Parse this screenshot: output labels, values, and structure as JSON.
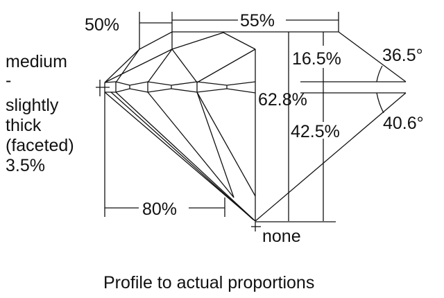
{
  "labels": {
    "table_width": "55%",
    "star_length": "50%",
    "crown_height": "16.5%",
    "crown_angle": "36.5°",
    "total_depth": "62.8%",
    "pavilion_depth": "42.5%",
    "pavilion_angle": "40.6°",
    "lower_half_length": "80%",
    "culet": "none",
    "girdle_lines": [
      "medium",
      "-",
      "slightly",
      "thick",
      "(faceted)",
      "3.5%"
    ]
  },
  "caption": "Profile to actual proportions",
  "colors": {
    "line": "#111111",
    "background": "#ffffff"
  }
}
